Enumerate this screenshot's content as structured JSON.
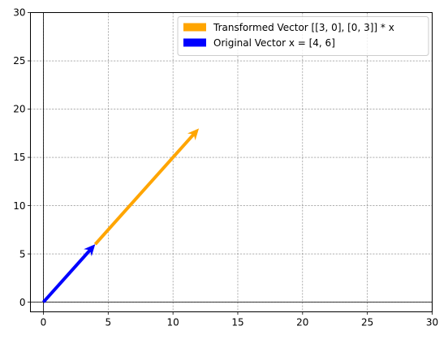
{
  "chart_data": {
    "type": "vector_plot",
    "title": "",
    "xlabel": "",
    "ylabel": "",
    "xlim": [
      -1,
      30
    ],
    "ylim": [
      -1,
      30
    ],
    "xticks": [
      0,
      5,
      10,
      15,
      20,
      25,
      30
    ],
    "yticks": [
      0,
      5,
      10,
      15,
      20,
      25,
      30
    ],
    "grid": true,
    "axis_lines": {
      "x": 0,
      "y": 0
    },
    "legend_position": "top-right",
    "series": [
      {
        "name": "Transformed Vector [[3, 0], [0, 3]] * x",
        "color": "#FFA500",
        "start": [
          4,
          6
        ],
        "end": [
          12,
          18
        ]
      },
      {
        "name": "Original Vector x = [4, 6]",
        "color": "#0000FF",
        "start": [
          0,
          0
        ],
        "end": [
          4,
          6
        ]
      }
    ]
  }
}
